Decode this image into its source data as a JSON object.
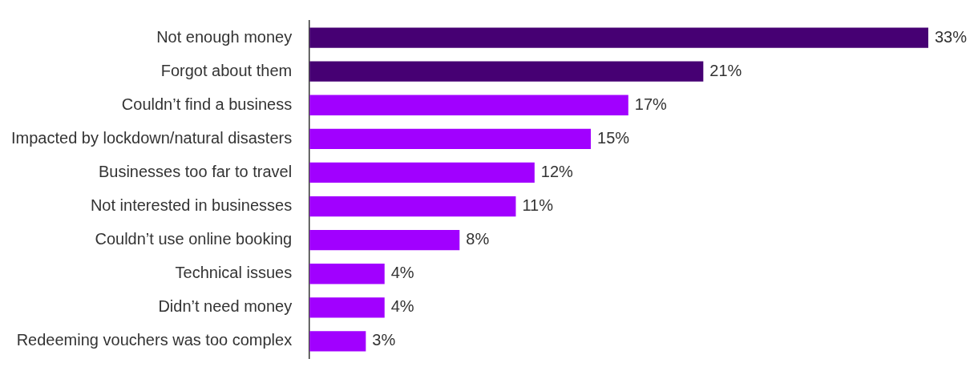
{
  "chart_data": {
    "type": "bar",
    "orientation": "horizontal",
    "categories": [
      "Not enough money",
      "Forgot about them",
      "Couldn’t find a business",
      "Impacted by lockdown/natural disasters",
      "Businesses too far to travel",
      "Not interested in businesses",
      "Couldn’t use online booking",
      "Technical issues",
      "Didn’t need money",
      "Redeeming vouchers was too complex"
    ],
    "values": [
      33,
      21,
      17,
      15,
      12,
      11,
      8,
      4,
      4,
      3
    ],
    "colors": [
      "#460073",
      "#460073",
      "#a100ff",
      "#a100ff",
      "#a100ff",
      "#a100ff",
      "#a100ff",
      "#a100ff",
      "#a100ff",
      "#a100ff"
    ],
    "value_labels": [
      "33%",
      "21%",
      "17%",
      "15%",
      "12%",
      "11%",
      "8%",
      "4%",
      "4%",
      "3%"
    ],
    "tick_labels": "y",
    "grid": false,
    "legend": false
  }
}
